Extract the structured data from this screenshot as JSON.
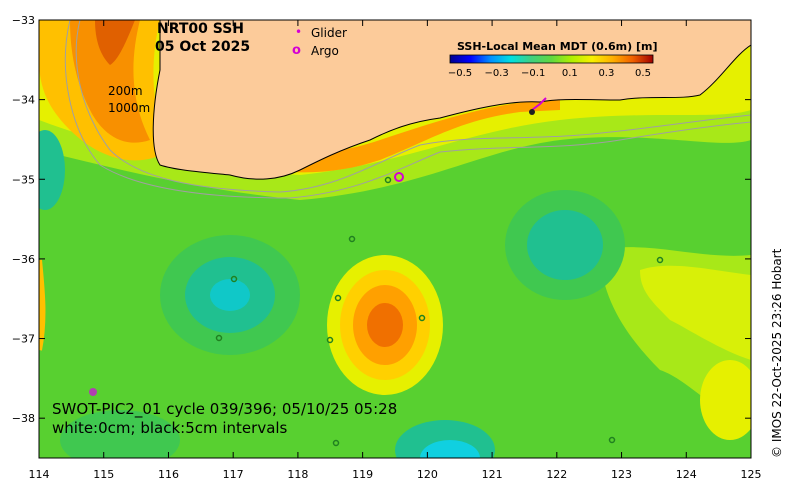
{
  "title": {
    "product": "NRT00 SSH",
    "date": "05 Oct 2025"
  },
  "legend": {
    "glider_label": "Glider",
    "glider_symbol": "•",
    "argo_label": "Argo",
    "argo_symbol": "o",
    "glider_color": "#d400d4",
    "argo_color": "#d400d4"
  },
  "colorbar": {
    "title": "SSH-Local Mean MDT (0.6m) [m]",
    "ticks": [
      "−0.5",
      "−0.3",
      "−0.1",
      "0.1",
      "0.3",
      "0.5"
    ],
    "colors": [
      "#00008f",
      "#0000ff",
      "#0060ff",
      "#00c0ff",
      "#20e0c0",
      "#40d080",
      "#50d050",
      "#80e020",
      "#c0f000",
      "#f0f000",
      "#ffc000",
      "#ff9000",
      "#f06000",
      "#d03000",
      "#a00000"
    ]
  },
  "depth_contours": {
    "label_1": "200m",
    "label_2": "1000m"
  },
  "swot": {
    "line_1": "SWOT-PIC2_01 cycle 039/396; 05/10/25 05:28",
    "line_2": "white:0cm; black:5cm intervals"
  },
  "credit": "© IMOS 22-Oct-2025 23:26 Hobart",
  "axes": {
    "x_ticks": [
      "114",
      "115",
      "116",
      "117",
      "118",
      "119",
      "120",
      "121",
      "122",
      "123",
      "124",
      "125"
    ],
    "y_ticks": [
      "−33",
      "−34",
      "−35",
      "−36",
      "−37",
      "−38"
    ],
    "x_range": [
      114,
      125
    ],
    "y_range": [
      -38.5,
      -33
    ]
  },
  "colors": {
    "land": "#fccb9a",
    "frame": "#000000"
  }
}
